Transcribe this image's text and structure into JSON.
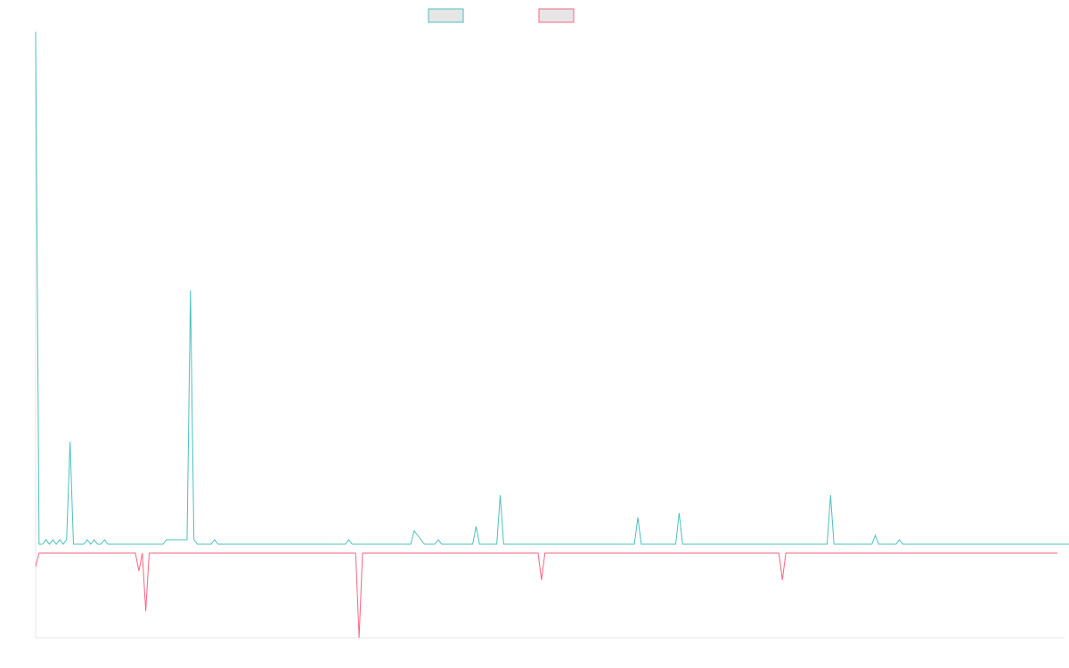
{
  "chart_data": {
    "type": "line",
    "title": "",
    "xlabel": "",
    "ylabel": "",
    "grid": false,
    "legend_position": "top-center",
    "colors": {
      "series_a": "#4bc0c0",
      "series_b": "#ff6384",
      "legend_fill": "#e6e6e6",
      "axis": "#e5e5e5"
    },
    "x_count": 300,
    "ylim": [
      -20,
      116
    ],
    "series": [
      {
        "name": "",
        "color": "#4bc0c0",
        "values": [
          116,
          1,
          1,
          2,
          1,
          2,
          1,
          2,
          1,
          2,
          24,
          1,
          1,
          1,
          1,
          2,
          1,
          2,
          1,
          1,
          2,
          1,
          1,
          1,
          1,
          1,
          1,
          1,
          1,
          1,
          1,
          1,
          1,
          1,
          1,
          1,
          1,
          1,
          2,
          2,
          2,
          2,
          2,
          2,
          2,
          58,
          2,
          1,
          1,
          1,
          1,
          1,
          2,
          1,
          1,
          1,
          1,
          1,
          1,
          1,
          1,
          1,
          1,
          1,
          1,
          1,
          1,
          1,
          1,
          1,
          1,
          1,
          1,
          1,
          1,
          1,
          1,
          1,
          1,
          1,
          1,
          1,
          1,
          1,
          1,
          1,
          1,
          1,
          1,
          1,
          1,
          2,
          1,
          1,
          1,
          1,
          1,
          1,
          1,
          1,
          1,
          1,
          1,
          1,
          1,
          1,
          1,
          1,
          1,
          1,
          4,
          3,
          2,
          1,
          1,
          1,
          1,
          2,
          1,
          1,
          1,
          1,
          1,
          1,
          1,
          1,
          1,
          1,
          5,
          1,
          1,
          1,
          1,
          1,
          1,
          12,
          1,
          1,
          1,
          1,
          1,
          1,
          1,
          1,
          1,
          1,
          1,
          1,
          1,
          1,
          1,
          1,
          1,
          1,
          1,
          1,
          1,
          1,
          1,
          1,
          1,
          1,
          1,
          1,
          1,
          1,
          1,
          1,
          1,
          1,
          1,
          1,
          1,
          1,
          1,
          7,
          1,
          1,
          1,
          1,
          1,
          1,
          1,
          1,
          1,
          1,
          1,
          8,
          1,
          1,
          1,
          1,
          1,
          1,
          1,
          1,
          1,
          1,
          1,
          1,
          1,
          1,
          1,
          1,
          1,
          1,
          1,
          1,
          1,
          1,
          1,
          1,
          1,
          1,
          1,
          1,
          1,
          1,
          1,
          1,
          1,
          1,
          1,
          1,
          1,
          1,
          1,
          1,
          1,
          1,
          1,
          12,
          1,
          1,
          1,
          1,
          1,
          1,
          1,
          1,
          1,
          1,
          1,
          1,
          3,
          1,
          1,
          1,
          1,
          1,
          1,
          2,
          1,
          1,
          1,
          1,
          1,
          1,
          1,
          1,
          1,
          1,
          1,
          1,
          1,
          1,
          1,
          1,
          1,
          1,
          1,
          1,
          1,
          1,
          1,
          1,
          1,
          1,
          1,
          1,
          1,
          1,
          1,
          1,
          1,
          1,
          1,
          1,
          1,
          1,
          1,
          1,
          1,
          1,
          1,
          1,
          1,
          1,
          1,
          1,
          1,
          1,
          1,
          1,
          1,
          1,
          1
        ]
      },
      {
        "name": "",
        "color": "#ff6384",
        "values": [
          -4,
          -1,
          -1,
          -1,
          -1,
          -1,
          -1,
          -1,
          -1,
          -1,
          -1,
          -1,
          -1,
          -1,
          -1,
          -1,
          -1,
          -1,
          -1,
          -1,
          -1,
          -1,
          -1,
          -1,
          -1,
          -1,
          -1,
          -1,
          -1,
          -1,
          -5,
          -1,
          -14,
          -1,
          -1,
          -1,
          -1,
          -1,
          -1,
          -1,
          -1,
          -1,
          -1,
          -1,
          -1,
          -1,
          -1,
          -1,
          -1,
          -1,
          -1,
          -1,
          -1,
          -1,
          -1,
          -1,
          -1,
          -1,
          -1,
          -1,
          -1,
          -1,
          -1,
          -1,
          -1,
          -1,
          -1,
          -1,
          -1,
          -1,
          -1,
          -1,
          -1,
          -1,
          -1,
          -1,
          -1,
          -1,
          -1,
          -1,
          -1,
          -1,
          -1,
          -1,
          -1,
          -1,
          -1,
          -1,
          -1,
          -1,
          -1,
          -1,
          -1,
          -1,
          -20,
          -1,
          -1,
          -1,
          -1,
          -1,
          -1,
          -1,
          -1,
          -1,
          -1,
          -1,
          -1,
          -1,
          -1,
          -1,
          -1,
          -1,
          -1,
          -1,
          -1,
          -1,
          -1,
          -1,
          -1,
          -1,
          -1,
          -1,
          -1,
          -1,
          -1,
          -1,
          -1,
          -1,
          -1,
          -1,
          -1,
          -1,
          -1,
          -1,
          -1,
          -1,
          -1,
          -1,
          -1,
          -1,
          -1,
          -1,
          -1,
          -1,
          -1,
          -1,
          -1,
          -7,
          -1,
          -1,
          -1,
          -1,
          -1,
          -1,
          -1,
          -1,
          -1,
          -1,
          -1,
          -1,
          -1,
          -1,
          -1,
          -1,
          -1,
          -1,
          -1,
          -1,
          -1,
          -1,
          -1,
          -1,
          -1,
          -1,
          -1,
          -1,
          -1,
          -1,
          -1,
          -1,
          -1,
          -1,
          -1,
          -1,
          -1,
          -1,
          -1,
          -1,
          -1,
          -1,
          -1,
          -1,
          -1,
          -1,
          -1,
          -1,
          -1,
          -1,
          -1,
          -1,
          -1,
          -1,
          -1,
          -1,
          -1,
          -1,
          -1,
          -1,
          -1,
          -1,
          -1,
          -1,
          -1,
          -1,
          -1,
          -1,
          -1,
          -7,
          -1,
          -1,
          -1,
          -1,
          -1,
          -1,
          -1,
          -1,
          -1,
          -1,
          -1,
          -1,
          -1,
          -1,
          -1,
          -1,
          -1,
          -1,
          -1,
          -1,
          -1,
          -1,
          -1,
          -1,
          -1,
          -1,
          -1,
          -1,
          -1,
          -1,
          -1,
          -1,
          -1,
          -1,
          -1,
          -1,
          -1,
          -1,
          -1,
          -1,
          -1,
          -1,
          -1,
          -1,
          -1,
          -1,
          -1,
          -1,
          -1,
          -1,
          -1,
          -1,
          -1,
          -1,
          -1,
          -1,
          -1,
          -1,
          -1,
          -1,
          -1,
          -1,
          -1,
          -1,
          -1,
          -1,
          -1,
          -1,
          -1,
          -1,
          -1,
          -1,
          -1,
          -1,
          -1,
          -1,
          -1,
          -1,
          -1,
          -1
        ]
      }
    ]
  }
}
